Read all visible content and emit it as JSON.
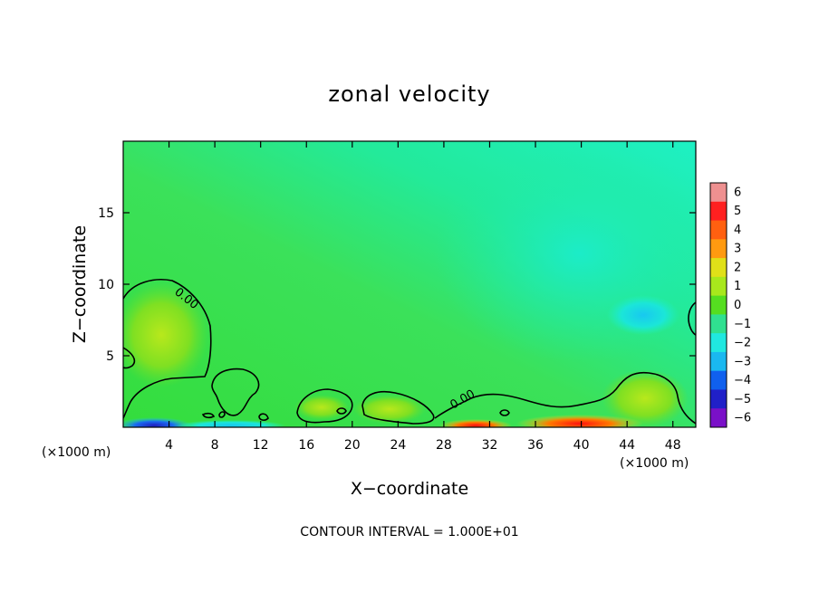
{
  "chart_data": {
    "type": "heatmap",
    "title": "zonal velocity",
    "xlabel": "X−coordinate",
    "ylabel": "Z−coordinate",
    "x_unit_left": "(×1000 m)",
    "x_unit_right": "(×1000 m)",
    "xlim": [
      0,
      50
    ],
    "ylim": [
      0,
      20
    ],
    "x_ticks": [
      4,
      8,
      12,
      16,
      20,
      24,
      28,
      32,
      36,
      40,
      44,
      48
    ],
    "y_ticks": [
      5,
      10,
      15
    ],
    "colorbar": {
      "min": -6,
      "max": 6,
      "labels": [
        "6",
        "5",
        "4",
        "3",
        "2",
        "1",
        "0",
        "−1",
        "−2",
        "−3",
        "−4",
        "−5",
        "−6"
      ]
    },
    "contour_labels": [
      "0.00",
      "0.00"
    ],
    "footer": "CONTOUR INTERVAL = 1.000E+01",
    "colors": {
      "background_field": "#33e14c",
      "upper_right_field": "#1ef1b4",
      "contour_line": "#000000"
    }
  }
}
